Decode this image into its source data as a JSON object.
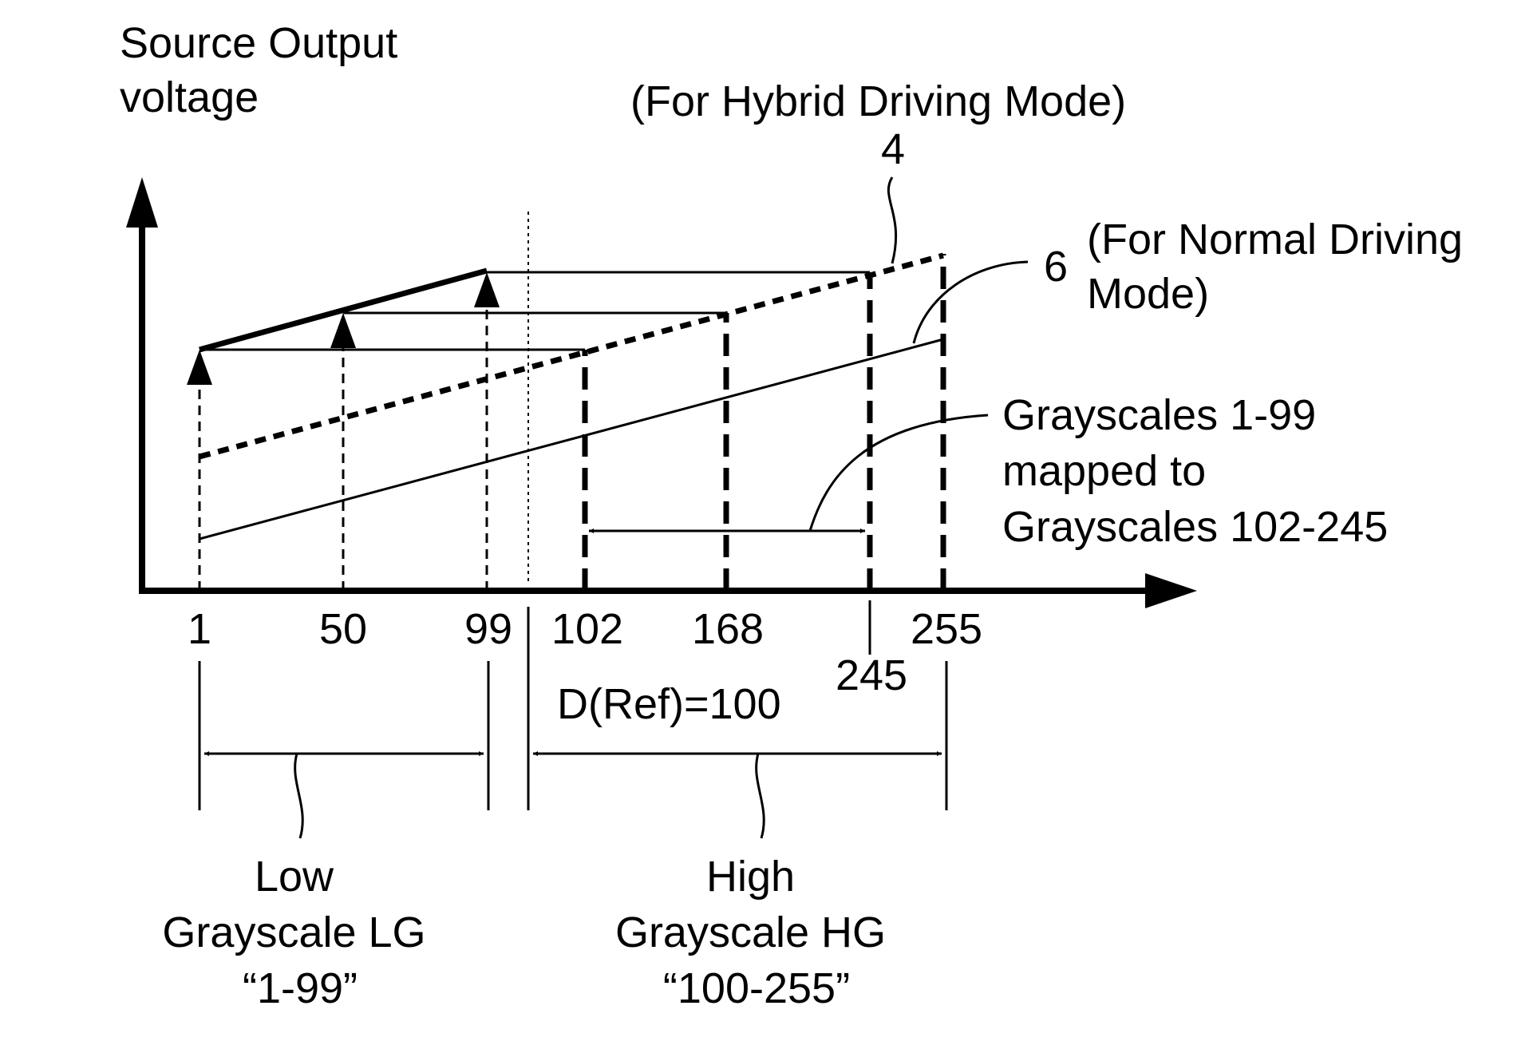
{
  "y_axis_label": [
    "Source Output",
    "voltage"
  ],
  "hybrid_mode_label": "(For Hybrid Driving Mode)",
  "hybrid_ref": "4",
  "normal_ref": "6",
  "normal_mode_label": [
    "(For Normal Driving",
    "Mode)"
  ],
  "mapping_note": [
    "Grayscales 1-99",
    "mapped to",
    "Grayscales 102-245"
  ],
  "ticks": [
    "1",
    "50",
    "99",
    "102",
    "168",
    "255",
    "245"
  ],
  "d_ref": "D(Ref)=100",
  "low_group": [
    "Low",
    "Grayscale LG",
    "“1-99”"
  ],
  "high_group": [
    "High",
    "Grayscale HG",
    "“100-255”"
  ],
  "colors": {
    "ink": "#000000",
    "background": "#ffffff"
  }
}
